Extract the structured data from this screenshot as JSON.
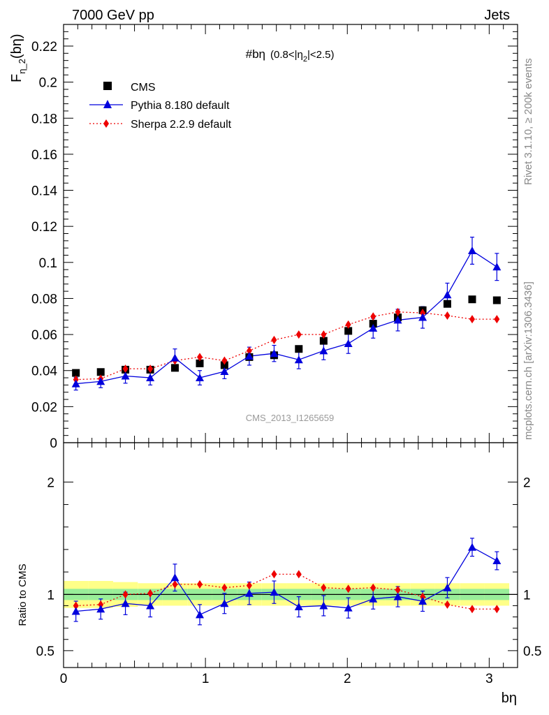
{
  "header": {
    "left": "7000 GeV pp",
    "right": "Jets"
  },
  "side_labels": {
    "rivet": "Rivet 3.1.10, ≥ 200k events",
    "mcplots": "mcplots.cern.ch [arXiv:1306.3436]"
  },
  "colors": {
    "cms": "#000000",
    "pythia": "#0000dd",
    "sherpa": "#ee0000",
    "band_inner": "#99ee99",
    "band_outer": "#ffff88"
  },
  "chart_data": [
    {
      "type": "scatter",
      "panel": "main",
      "title_main": "#bη",
      "title_sub": "(0.8<|η",
      "title_sub_index": "2",
      "title_sub_end": "|<2.5)",
      "ylabel_main": "F",
      "ylabel_sub": "η_2",
      "ylabel_end": "(bη)",
      "watermark": "CMS_2013_I1265659",
      "xlim": [
        0,
        3.2
      ],
      "ylim": [
        0,
        0.232
      ],
      "y_ticks": [
        0,
        0.02,
        0.04,
        0.06,
        0.08,
        0.1,
        0.12,
        0.14,
        0.16,
        0.18,
        0.2,
        0.22
      ],
      "y_tick_labels": [
        "0",
        "0.02",
        "0.04",
        "0.06",
        "0.08",
        "0.1",
        "0.12",
        "0.14",
        "0.16",
        "0.18",
        "0.2",
        "0.22"
      ],
      "legend_position": "top-left",
      "x": [
        0.087,
        0.262,
        0.436,
        0.611,
        0.785,
        0.96,
        1.134,
        1.309,
        1.484,
        1.658,
        1.833,
        2.007,
        2.182,
        2.356,
        2.531,
        2.705,
        2.88,
        3.054
      ],
      "series": [
        {
          "name": "CMS",
          "marker": "square",
          "values": [
            0.0387,
            0.0392,
            0.0405,
            0.0405,
            0.0415,
            0.044,
            0.043,
            0.0475,
            0.0485,
            0.052,
            0.0565,
            0.062,
            0.066,
            0.0695,
            0.0735,
            0.077,
            0.0795,
            0.079
          ]
        },
        {
          "name": "Pythia 8.180 default",
          "marker": "triangle",
          "line": "solid",
          "values": [
            0.0327,
            0.034,
            0.037,
            0.036,
            0.047,
            0.036,
            0.0395,
            0.048,
            0.0495,
            0.046,
            0.051,
            0.055,
            0.0635,
            0.068,
            0.0695,
            0.082,
            0.1065,
            0.0975
          ],
          "errors": [
            0.0035,
            0.0035,
            0.004,
            0.004,
            0.005,
            0.004,
            0.004,
            0.005,
            0.0045,
            0.005,
            0.005,
            0.0055,
            0.0055,
            0.006,
            0.006,
            0.0065,
            0.0075,
            0.0075
          ]
        },
        {
          "name": "Sherpa 2.2.9 default",
          "marker": "diamond",
          "line": "dotted",
          "values": [
            0.035,
            0.0355,
            0.041,
            0.041,
            0.0455,
            0.0475,
            0.0455,
            0.051,
            0.057,
            0.06,
            0.06,
            0.0655,
            0.07,
            0.0725,
            0.072,
            0.0705,
            0.0685,
            0.0685
          ]
        }
      ]
    },
    {
      "type": "line",
      "panel": "ratio",
      "ylabel": "Ratio to CMS",
      "xlabel": "bη",
      "xlim": [
        0,
        3.2
      ],
      "ylim": [
        0.35,
        2.35
      ],
      "x_ticks": [
        0,
        1,
        2,
        3
      ],
      "x_tick_labels": [
        "0",
        "1",
        "2",
        "3"
      ],
      "y_ticks": [
        0.5,
        1,
        2
      ],
      "y_tick_labels": [
        "0.5",
        "1",
        "2"
      ],
      "x": [
        0.087,
        0.262,
        0.436,
        0.611,
        0.785,
        0.96,
        1.134,
        1.309,
        1.484,
        1.658,
        1.833,
        2.007,
        2.182,
        2.356,
        2.531,
        2.705,
        2.88,
        3.054
      ],
      "band_inner": [
        0.05,
        0.05,
        0.05,
        0.05,
        0.05,
        0.05,
        0.05,
        0.05,
        0.05,
        0.05,
        0.05,
        0.05,
        0.05,
        0.05,
        0.05,
        0.05,
        0.05,
        0.05
      ],
      "band_outer": [
        0.12,
        0.12,
        0.11,
        0.1,
        0.1,
        0.1,
        0.1,
        0.1,
        0.1,
        0.1,
        0.1,
        0.1,
        0.1,
        0.1,
        0.1,
        0.1,
        0.1,
        0.1
      ],
      "series": [
        {
          "name": "Pythia 8.180 default",
          "values": [
            0.85,
            0.87,
            0.92,
            0.9,
            1.15,
            0.82,
            0.92,
            1.01,
            1.02,
            0.89,
            0.9,
            0.88,
            0.96,
            0.98,
            0.94,
            1.06,
            1.42,
            1.3
          ],
          "errors": [
            0.09,
            0.09,
            0.1,
            0.1,
            0.12,
            0.09,
            0.09,
            0.1,
            0.1,
            0.09,
            0.09,
            0.09,
            0.09,
            0.09,
            0.09,
            0.09,
            0.08,
            0.08
          ]
        },
        {
          "name": "Sherpa 2.2.9 default",
          "values": [
            0.9,
            0.91,
            1.0,
            1.01,
            1.09,
            1.09,
            1.06,
            1.08,
            1.18,
            1.18,
            1.06,
            1.05,
            1.06,
            1.04,
            0.98,
            0.91,
            0.87,
            0.87
          ]
        }
      ]
    }
  ]
}
